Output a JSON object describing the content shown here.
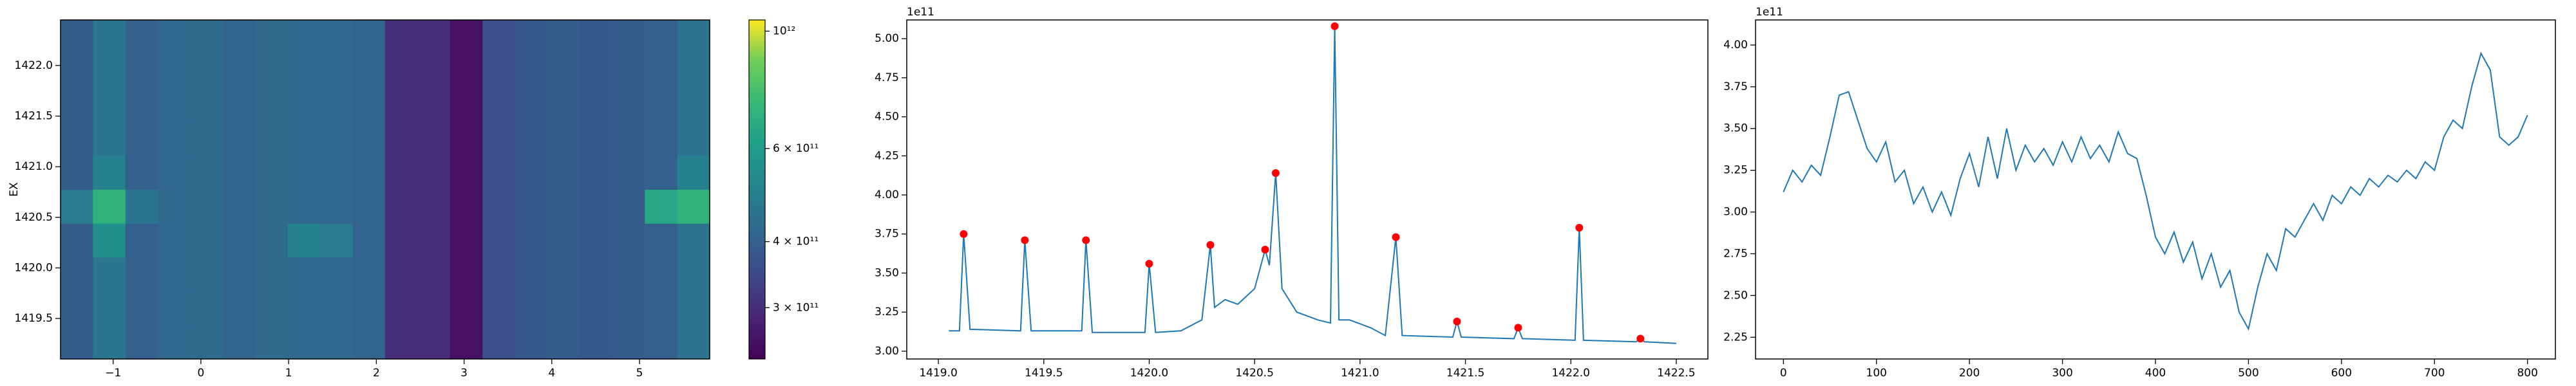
{
  "chart_data": [
    {
      "type": "heatmap",
      "ylabel": "EX",
      "xbins": [
        -1.6,
        -1.23,
        -0.86,
        -0.49,
        -0.12,
        0.25,
        0.62,
        0.99,
        1.36,
        1.73,
        2.1,
        2.47,
        2.84,
        3.21,
        3.58,
        3.95,
        4.32,
        4.69,
        5.06,
        5.43,
        5.8
      ],
      "ybins": [
        1419.1,
        1419.435,
        1419.77,
        1420.105,
        1420.44,
        1420.775,
        1421.11,
        1421.445,
        1421.78,
        1422.115,
        1422.45
      ],
      "z": [
        [
          390000000000.0,
          460000000000.0,
          400000000000.0,
          420000000000.0,
          430000000000.0,
          410000000000.0,
          430000000000.0,
          420000000000.0,
          420000000000.0,
          410000000000.0,
          300000000000.0,
          300000000000.0,
          260000000000.0,
          360000000000.0,
          380000000000.0,
          390000000000.0,
          380000000000.0,
          390000000000.0,
          400000000000.0,
          450000000000.0
        ],
        [
          390000000000.0,
          460000000000.0,
          400000000000.0,
          420000000000.0,
          430000000000.0,
          410000000000.0,
          430000000000.0,
          420000000000.0,
          420000000000.0,
          410000000000.0,
          300000000000.0,
          300000000000.0,
          260000000000.0,
          360000000000.0,
          380000000000.0,
          390000000000.0,
          380000000000.0,
          390000000000.0,
          400000000000.0,
          450000000000.0
        ],
        [
          390000000000.0,
          460000000000.0,
          400000000000.0,
          420000000000.0,
          430000000000.0,
          410000000000.0,
          430000000000.0,
          420000000000.0,
          420000000000.0,
          410000000000.0,
          300000000000.0,
          300000000000.0,
          260000000000.0,
          360000000000.0,
          380000000000.0,
          390000000000.0,
          380000000000.0,
          390000000000.0,
          400000000000.0,
          450000000000.0
        ],
        [
          390000000000.0,
          550000000000.0,
          400000000000.0,
          420000000000.0,
          430000000000.0,
          410000000000.0,
          430000000000.0,
          500000000000.0,
          480000000000.0,
          410000000000.0,
          300000000000.0,
          300000000000.0,
          260000000000.0,
          360000000000.0,
          380000000000.0,
          390000000000.0,
          380000000000.0,
          390000000000.0,
          400000000000.0,
          450000000000.0
        ],
        [
          480000000000.0,
          700000000000.0,
          460000000000.0,
          420000000000.0,
          430000000000.0,
          410000000000.0,
          430000000000.0,
          420000000000.0,
          420000000000.0,
          410000000000.0,
          300000000000.0,
          300000000000.0,
          260000000000.0,
          360000000000.0,
          380000000000.0,
          390000000000.0,
          380000000000.0,
          390000000000.0,
          650000000000.0,
          700000000000.0
        ],
        [
          390000000000.0,
          500000000000.0,
          400000000000.0,
          420000000000.0,
          430000000000.0,
          410000000000.0,
          430000000000.0,
          420000000000.0,
          420000000000.0,
          410000000000.0,
          300000000000.0,
          300000000000.0,
          260000000000.0,
          360000000000.0,
          380000000000.0,
          390000000000.0,
          380000000000.0,
          390000000000.0,
          400000000000.0,
          500000000000.0
        ],
        [
          390000000000.0,
          460000000000.0,
          400000000000.0,
          420000000000.0,
          430000000000.0,
          410000000000.0,
          430000000000.0,
          420000000000.0,
          420000000000.0,
          410000000000.0,
          300000000000.0,
          300000000000.0,
          260000000000.0,
          360000000000.0,
          380000000000.0,
          390000000000.0,
          380000000000.0,
          390000000000.0,
          400000000000.0,
          450000000000.0
        ],
        [
          390000000000.0,
          460000000000.0,
          400000000000.0,
          420000000000.0,
          430000000000.0,
          410000000000.0,
          430000000000.0,
          420000000000.0,
          420000000000.0,
          410000000000.0,
          300000000000.0,
          300000000000.0,
          260000000000.0,
          360000000000.0,
          380000000000.0,
          390000000000.0,
          380000000000.0,
          390000000000.0,
          400000000000.0,
          450000000000.0
        ],
        [
          390000000000.0,
          460000000000.0,
          400000000000.0,
          420000000000.0,
          430000000000.0,
          410000000000.0,
          430000000000.0,
          420000000000.0,
          420000000000.0,
          410000000000.0,
          300000000000.0,
          300000000000.0,
          260000000000.0,
          360000000000.0,
          380000000000.0,
          390000000000.0,
          380000000000.0,
          390000000000.0,
          400000000000.0,
          450000000000.0
        ],
        [
          390000000000.0,
          460000000000.0,
          400000000000.0,
          420000000000.0,
          430000000000.0,
          410000000000.0,
          430000000000.0,
          420000000000.0,
          420000000000.0,
          410000000000.0,
          300000000000.0,
          300000000000.0,
          260000000000.0,
          360000000000.0,
          380000000000.0,
          390000000000.0,
          380000000000.0,
          390000000000.0,
          400000000000.0,
          450000000000.0
        ]
      ],
      "xlim": [
        -1.6,
        5.8
      ],
      "xticks": [
        {
          "value": -1,
          "label": "−1"
        },
        0,
        1,
        2,
        3,
        4,
        5
      ],
      "ylim": [
        1419.1,
        1422.45
      ],
      "yticks": [
        {
          "value": 1419.5,
          "label": "1419.5"
        },
        {
          "value": 1420.0,
          "label": "1420.0"
        },
        {
          "value": 1420.5,
          "label": "1420.5"
        },
        {
          "value": 1421.0,
          "label": "1421.0"
        },
        {
          "value": 1421.5,
          "label": "1421.5"
        },
        {
          "value": 1422.0,
          "label": "1422.0"
        }
      ],
      "colorbar": {
        "colormap": "viridis",
        "log": true,
        "lim": [
          240000000000.0,
          1050000000000.0
        ],
        "ticks": [
          {
            "value": 300000000000.0,
            "label": "3 × 10¹¹"
          },
          {
            "value": 400000000000.0,
            "label": "4 × 10¹¹"
          },
          {
            "value": 600000000000.0,
            "label": "6 × 10¹¹"
          },
          {
            "value": 1000000000000.0,
            "label": "10¹²"
          }
        ]
      }
    },
    {
      "type": "line",
      "offset_label": "1e11",
      "x": [
        1419.05,
        1419.1,
        1419.12,
        1419.15,
        1419.39,
        1419.41,
        1419.44,
        1419.68,
        1419.7,
        1419.73,
        1419.98,
        1420.0,
        1420.03,
        1420.15,
        1420.25,
        1420.29,
        1420.31,
        1420.36,
        1420.42,
        1420.5,
        1420.55,
        1420.57,
        1420.6,
        1420.63,
        1420.7,
        1420.8,
        1420.86,
        1420.88,
        1420.9,
        1420.95,
        1421.05,
        1421.12,
        1421.17,
        1421.2,
        1421.44,
        1421.46,
        1421.48,
        1421.73,
        1421.75,
        1421.77,
        1422.02,
        1422.04,
        1422.06,
        1422.31,
        1422.33,
        1422.35,
        1422.5
      ],
      "series": [
        {
          "color": "#1f77b4",
          "values": [
            3.13,
            3.13,
            3.75,
            3.14,
            3.13,
            3.71,
            3.13,
            3.13,
            3.71,
            3.12,
            3.12,
            3.56,
            3.12,
            3.13,
            3.2,
            3.68,
            3.28,
            3.33,
            3.3,
            3.4,
            3.65,
            3.55,
            4.14,
            3.4,
            3.25,
            3.2,
            3.18,
            5.08,
            3.2,
            3.2,
            3.15,
            3.1,
            3.73,
            3.1,
            3.09,
            3.19,
            3.09,
            3.08,
            3.15,
            3.08,
            3.07,
            3.79,
            3.07,
            3.06,
            3.08,
            3.06,
            3.05
          ]
        }
      ],
      "peaks": {
        "color": "#ff0000",
        "x": [
          1419.12,
          1419.41,
          1419.7,
          1420.0,
          1420.29,
          1420.55,
          1420.6,
          1420.88,
          1421.17,
          1421.46,
          1421.75,
          1422.04,
          1422.33
        ],
        "values": [
          3.75,
          3.71,
          3.71,
          3.56,
          3.68,
          3.65,
          4.14,
          5.08,
          3.73,
          3.19,
          3.15,
          3.79,
          3.08
        ]
      },
      "xlim": [
        1418.85,
        1422.65
      ],
      "xticks": [
        {
          "value": 1419.0,
          "label": "1419.0"
        },
        1419.5,
        {
          "value": 1420.0,
          "label": "1420.0"
        },
        1420.5,
        {
          "value": 1421.0,
          "label": "1421.0"
        },
        1421.5,
        {
          "value": 1422.0,
          "label": "1422.0"
        },
        1422.5
      ],
      "ylim": [
        2.95,
        5.12
      ],
      "yticks": [
        {
          "value": 3.0,
          "label": "3.00"
        },
        3.25,
        {
          "value": 3.5,
          "label": "3.50"
        },
        3.75,
        {
          "value": 4.0,
          "label": "4.00"
        },
        4.25,
        {
          "value": 4.5,
          "label": "4.50"
        },
        4.75,
        {
          "value": 5.0,
          "label": "5.00"
        }
      ]
    },
    {
      "type": "line",
      "offset_label": "1e11",
      "x": [
        0,
        10,
        20,
        30,
        40,
        50,
        60,
        70,
        80,
        90,
        100,
        110,
        120,
        130,
        140,
        150,
        160,
        170,
        180,
        190,
        200,
        210,
        220,
        230,
        240,
        250,
        260,
        270,
        280,
        290,
        300,
        310,
        320,
        330,
        340,
        350,
        360,
        370,
        380,
        390,
        400,
        410,
        420,
        430,
        440,
        450,
        460,
        470,
        480,
        490,
        500,
        510,
        520,
        530,
        540,
        550,
        560,
        570,
        580,
        590,
        600,
        610,
        620,
        630,
        640,
        650,
        660,
        670,
        680,
        690,
        700,
        710,
        720,
        730,
        740,
        750,
        760,
        770,
        780,
        790,
        800
      ],
      "series": [
        {
          "color": "#1f77b4",
          "values": [
            3.12,
            3.25,
            3.18,
            3.28,
            3.22,
            3.45,
            3.7,
            3.72,
            3.55,
            3.38,
            3.3,
            3.42,
            3.18,
            3.25,
            3.05,
            3.15,
            3.0,
            3.12,
            2.98,
            3.2,
            3.35,
            3.15,
            3.45,
            3.2,
            3.5,
            3.25,
            3.4,
            3.3,
            3.38,
            3.28,
            3.42,
            3.3,
            3.45,
            3.32,
            3.4,
            3.3,
            3.48,
            3.35,
            3.32,
            3.1,
            2.85,
            2.75,
            2.88,
            2.7,
            2.82,
            2.6,
            2.75,
            2.55,
            2.65,
            2.4,
            2.3,
            2.55,
            2.75,
            2.65,
            2.9,
            2.85,
            2.95,
            3.05,
            2.95,
            3.1,
            3.05,
            3.15,
            3.1,
            3.2,
            3.15,
            3.22,
            3.18,
            3.25,
            3.2,
            3.3,
            3.25,
            3.45,
            3.55,
            3.5,
            3.75,
            3.95,
            3.85,
            3.45,
            3.4,
            3.45,
            3.58
          ]
        }
      ],
      "xlim": [
        -30,
        830
      ],
      "xticks": [
        0,
        100,
        200,
        300,
        400,
        500,
        600,
        700,
        800
      ],
      "ylim": [
        2.12,
        4.15
      ],
      "yticks": [
        2.25,
        {
          "value": 2.5,
          "label": "2.50"
        },
        2.75,
        {
          "value": 3.0,
          "label": "3.00"
        },
        3.25,
        {
          "value": 3.5,
          "label": "3.50"
        },
        3.75,
        {
          "value": 4.0,
          "label": "4.00"
        }
      ]
    }
  ]
}
